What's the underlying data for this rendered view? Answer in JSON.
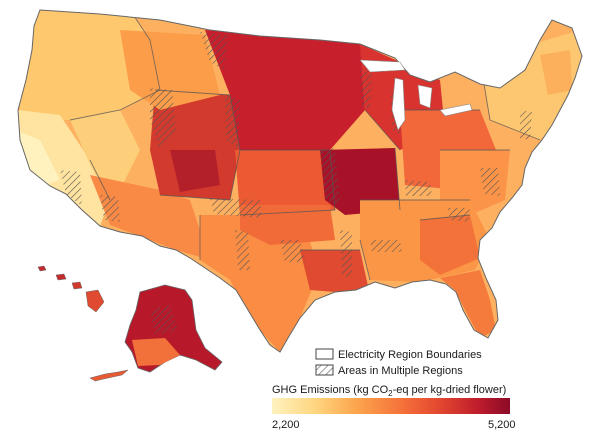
{
  "legend": {
    "boundary_label": "Electricity Region Boundaries",
    "multi_label": "Areas in Multiple Regions",
    "scale_title_prefix": "GHG Emissions (kg CO",
    "scale_title_sub": "2",
    "scale_title_suffix": "-eq per kg-dried flower)",
    "min_label": "2,200",
    "max_label": "5,200",
    "min_value": 2200,
    "max_value": 5200
  },
  "colors": {
    "scale": [
      "#fff2bf",
      "#fed680",
      "#fca64d",
      "#f5703a",
      "#e0432e",
      "#c01e2c",
      "#8c0a28"
    ],
    "boundary": "#555555",
    "background": "#ffffff"
  },
  "regions": [
    {
      "name": "pacific-northwest",
      "value": 2900
    },
    {
      "name": "california",
      "value": 2300
    },
    {
      "name": "southwest",
      "value": 3200
    },
    {
      "name": "rocky-mountains",
      "value": 4700
    },
    {
      "name": "northern-plains",
      "value": 4800
    },
    {
      "name": "central-plains",
      "value": 4000
    },
    {
      "name": "midwest-core",
      "value": 5000
    },
    {
      "name": "great-lakes",
      "value": 4500
    },
    {
      "name": "ohio-valley",
      "value": 3800
    },
    {
      "name": "northeast",
      "value": 2900
    },
    {
      "name": "southeast",
      "value": 3300
    },
    {
      "name": "florida",
      "value": 3600
    },
    {
      "name": "gulf-coast",
      "value": 4300
    },
    {
      "name": "texas",
      "value": 3800
    },
    {
      "name": "alaska",
      "value": 4600
    },
    {
      "name": "hawaii",
      "value": 4300
    }
  ]
}
